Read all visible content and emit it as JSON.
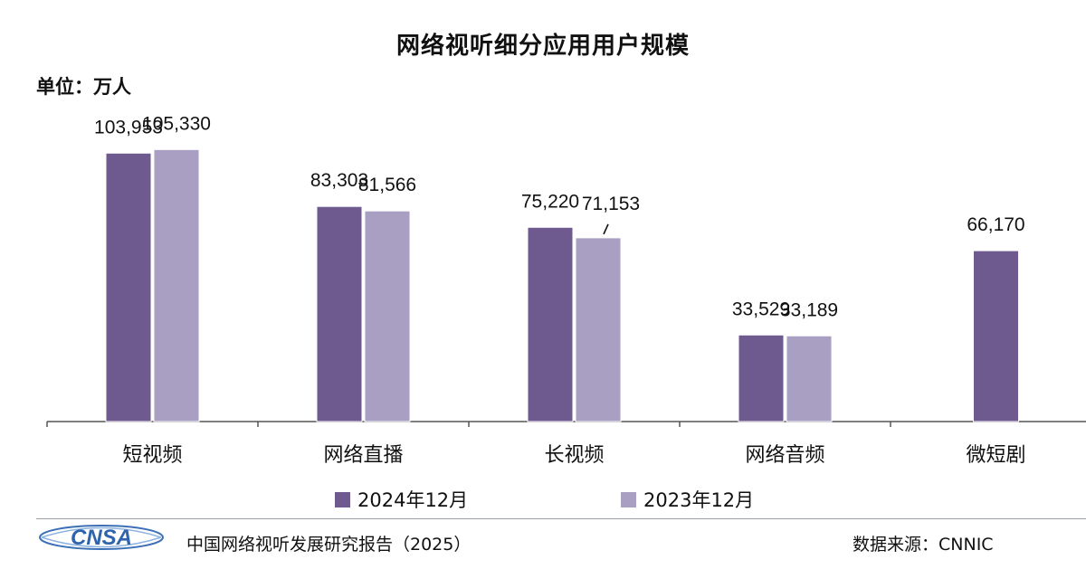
{
  "chart_data": {
    "type": "bar",
    "title": "网络视听细分应用用户规模",
    "unit_label": "单位：万人",
    "categories": [
      "短视频",
      "网络直播",
      "长视频",
      "网络音频",
      "微短剧"
    ],
    "series": [
      {
        "name": "2024年12月",
        "color": "#6f5a90",
        "values": [
          103953,
          83303,
          75220,
          33529,
          66170
        ],
        "labels": [
          "103,953",
          "83,303",
          "75,220",
          "33,529",
          "66,170"
        ]
      },
      {
        "name": "2023年12月",
        "color": "#a99fc2",
        "values": [
          105330,
          81566,
          71153,
          33189,
          null
        ],
        "labels": [
          "105,330",
          "81,566",
          "71,153",
          "33,189",
          ""
        ]
      }
    ],
    "ylim": [
      0,
      110000
    ],
    "grid": false,
    "legend_position": "bottom"
  },
  "footer": {
    "logo_text": "CNSA",
    "report": "中国网络视听发展研究报告（2025）",
    "source": "数据来源：CNNIC"
  }
}
